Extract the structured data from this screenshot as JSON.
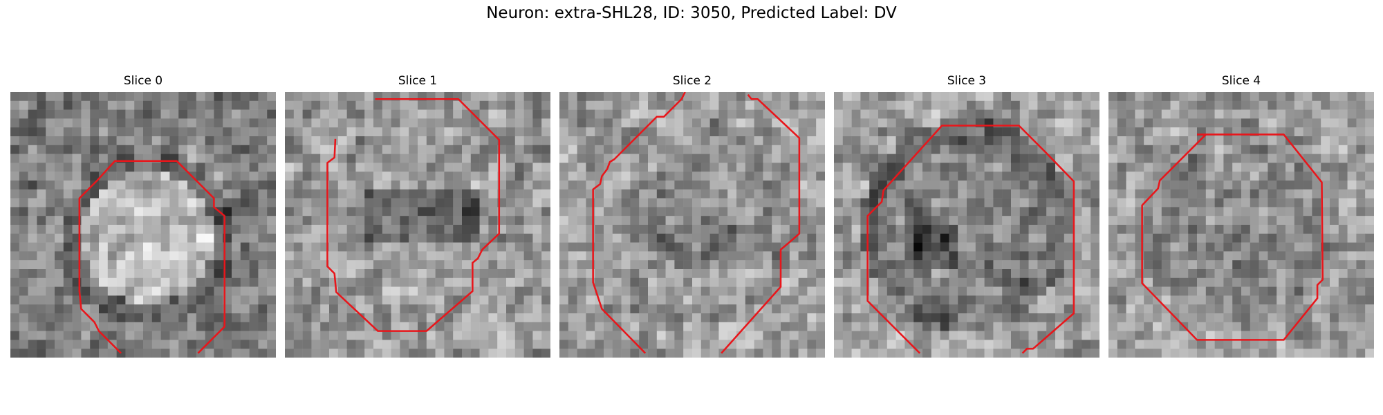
{
  "figure": {
    "suptitle": "Neuron: extra-SHL28, ID: 3050, Predicted Label: DV"
  },
  "panels": [
    {
      "title": "Slice 0"
    },
    {
      "title": "Slice 1"
    },
    {
      "title": "Slice 2"
    },
    {
      "title": "Slice 3"
    },
    {
      "title": "Slice 4"
    }
  ],
  "colors": {
    "contour": "#e8161b",
    "background": "#ffffff"
  },
  "colormap": "gray"
}
